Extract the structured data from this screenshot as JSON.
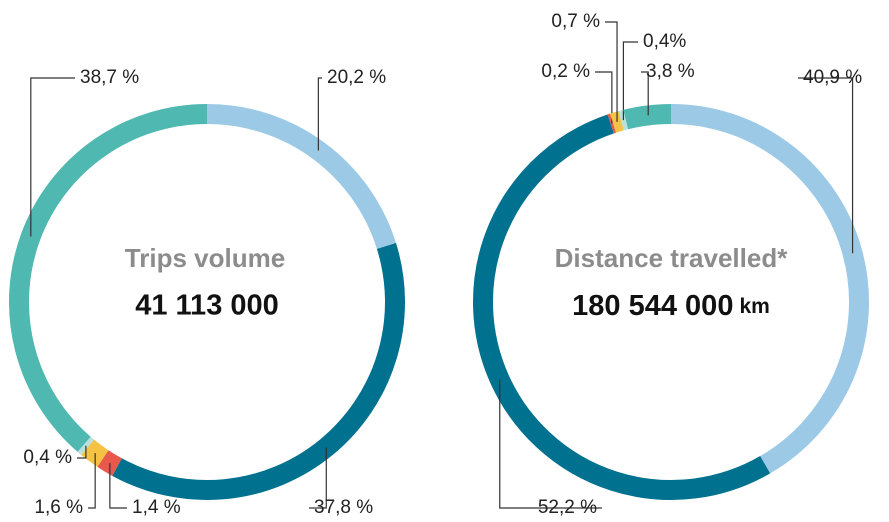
{
  "chart_data": [
    {
      "type": "donut",
      "title": "Trips volume",
      "total": "41 113 000",
      "values": [
        20.2,
        37.8,
        1.4,
        1.6,
        0.4,
        38.7
      ],
      "value_labels": [
        "20,2 %",
        "37,8 %",
        "1,4 %",
        "1,6 %",
        "0,4 %",
        "38,7 %"
      ],
      "colors": [
        "#9bc9e6",
        "#00718e",
        "#e8584b",
        "#f5c243",
        "#b9e0dc",
        "#4fb8b0"
      ]
    },
    {
      "type": "donut",
      "title": "Distance travelled*",
      "total": "180 544 000",
      "unit": "km",
      "values": [
        40.9,
        52.2,
        0.2,
        0.7,
        0.4,
        3.8
      ],
      "value_labels": [
        "40,9 %",
        "52,2 %",
        "0,2 %",
        "0,7 %",
        "0,4%",
        "3,8 %"
      ],
      "colors": [
        "#9bc9e6",
        "#00718e",
        "#e8584b",
        "#f5c243",
        "#b9e0dc",
        "#4fb8b0"
      ]
    }
  ]
}
